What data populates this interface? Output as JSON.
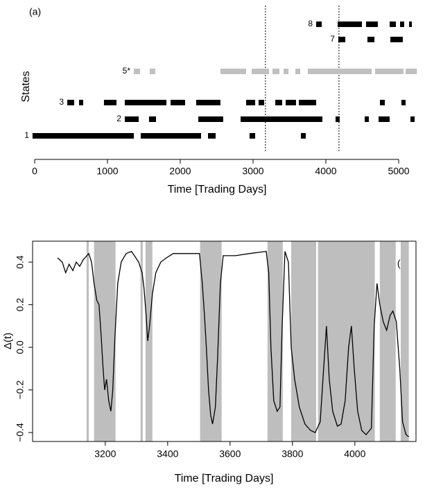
{
  "chart_data": [
    {
      "type": "timeline",
      "panel_label": "(a)",
      "ylabel": "States",
      "xlabel": "Time [Trading Days]",
      "xlim": [
        -114,
        5276
      ],
      "xticks": [
        0,
        1000,
        2000,
        3000,
        4000,
        5000
      ],
      "vlines": [
        3170,
        4180
      ],
      "series": [
        {
          "name": "1",
          "color": "#000000",
          "segments": [
            [
              -29,
              1362
            ],
            [
              1457,
              2286
            ],
            [
              2381,
              2486
            ],
            [
              2952,
              3029
            ],
            [
              3657,
              3724
            ]
          ]
        },
        {
          "name": "2",
          "color": "#000000",
          "segments": [
            [
              1238,
              1429
            ],
            [
              1571,
              1667
            ],
            [
              2248,
              2590
            ],
            [
              2829,
              3952
            ],
            [
              4133,
              4190
            ],
            [
              4533,
              4590
            ],
            [
              4724,
              4876
            ],
            [
              5162,
              5219
            ]
          ]
        },
        {
          "name": "3",
          "color": "#000000",
          "segments": [
            [
              448,
              543
            ],
            [
              610,
              667
            ],
            [
              952,
              1124
            ],
            [
              1238,
              1810
            ],
            [
              1867,
              2067
            ],
            [
              2219,
              2552
            ],
            [
              2905,
              3029
            ],
            [
              3076,
              3152
            ],
            [
              3305,
              3400
            ],
            [
              3448,
              3590
            ],
            [
              3629,
              3867
            ],
            [
              4743,
              4810
            ],
            [
              5038,
              5095
            ]
          ]
        },
        {
          "name": "5*",
          "color": "#c0c0c0",
          "segments": [
            [
              1362,
              1448
            ],
            [
              1581,
              1657
            ],
            [
              2552,
              2905
            ],
            [
              2981,
              3219
            ],
            [
              3267,
              3362
            ],
            [
              3419,
              3486
            ],
            [
              3581,
              3648
            ],
            [
              3752,
              4629
            ],
            [
              4676,
              5067
            ],
            [
              5095,
              5250
            ]
          ]
        },
        {
          "name": "7",
          "color": "#000000",
          "segments": [
            [
              4171,
              4267
            ],
            [
              4571,
              4667
            ],
            [
              4886,
              5057
            ]
          ]
        },
        {
          "name": "8",
          "color": "#000000",
          "segments": [
            [
              3867,
              3943
            ],
            [
              4162,
              4495
            ],
            [
              4552,
              4714
            ],
            [
              4876,
              4962
            ],
            [
              5019,
              5076
            ],
            [
              5143,
              5181
            ]
          ]
        }
      ]
    },
    {
      "type": "line",
      "panel_label": "(b)",
      "ylabel": "Δ(t)",
      "xlabel": "Time [Trading Days]",
      "xlim": [
        2967,
        4196
      ],
      "ylim": [
        -0.442,
        0.498
      ],
      "xticks": [
        3200,
        3400,
        3600,
        3800,
        4000
      ],
      "yticks": [
        {
          "value": -0.4,
          "label": "−0.4"
        },
        {
          "value": -0.2,
          "label": "−0.2"
        },
        {
          "value": 0,
          "label": "0.0"
        },
        0.2,
        0.4
      ],
      "shade_color": "#bebebe",
      "shaded": [
        [
          3140,
          3147
        ],
        [
          3164,
          3233
        ],
        [
          3313,
          3320
        ],
        [
          3329,
          3351
        ],
        [
          3504,
          3573
        ],
        [
          3720,
          3769
        ],
        [
          3796,
          3876
        ],
        [
          3882,
          4064
        ],
        [
          4080,
          4131
        ],
        [
          4147,
          4173
        ]
      ],
      "x": [
        3047,
        3062,
        3073,
        3084,
        3096,
        3107,
        3118,
        3129,
        3147,
        3156,
        3164,
        3173,
        3180,
        3187,
        3193,
        3198,
        3204,
        3211,
        3218,
        3224,
        3231,
        3240,
        3251,
        3267,
        3284,
        3298,
        3307,
        3318,
        3324,
        3331,
        3336,
        3342,
        3351,
        3362,
        3378,
        3396,
        3418,
        3462,
        3502,
        3511,
        3518,
        3524,
        3531,
        3538,
        3544,
        3553,
        3560,
        3569,
        3578,
        3618,
        3662,
        3716,
        3724,
        3731,
        3740,
        3751,
        3760,
        3767,
        3776,
        3787,
        3796,
        3807,
        3822,
        3840,
        3858,
        3873,
        3889,
        3900,
        3909,
        3918,
        3929,
        3944,
        3956,
        3969,
        3980,
        3989,
        3998,
        4009,
        4022,
        4036,
        4053,
        4062,
        4071,
        4080,
        4091,
        4102,
        4113,
        4122,
        4133,
        4144,
        4153,
        4164,
        4173
      ],
      "series": [
        {
          "color": "#000000",
          "values": [
            0.42,
            0.4,
            0.35,
            0.39,
            0.36,
            0.4,
            0.38,
            0.41,
            0.44,
            0.4,
            0.3,
            0.22,
            0.2,
            0.05,
            -0.1,
            -0.2,
            -0.15,
            -0.25,
            -0.3,
            -0.2,
            0.05,
            0.3,
            0.4,
            0.44,
            0.45,
            0.42,
            0.4,
            0.35,
            0.28,
            0.15,
            0.03,
            0.1,
            0.25,
            0.35,
            0.4,
            0.42,
            0.44,
            0.44,
            0.44,
            0.3,
            0.15,
            0.0,
            -0.2,
            -0.32,
            -0.36,
            -0.28,
            -0.05,
            0.3,
            0.43,
            0.43,
            0.44,
            0.45,
            0.35,
            0.0,
            -0.25,
            -0.3,
            -0.28,
            0.1,
            0.45,
            0.4,
            0.0,
            -0.15,
            -0.28,
            -0.36,
            -0.39,
            -0.4,
            -0.35,
            -0.1,
            0.1,
            -0.15,
            -0.3,
            -0.37,
            -0.36,
            -0.25,
            0.0,
            0.1,
            -0.1,
            -0.3,
            -0.39,
            -0.41,
            -0.38,
            0.1,
            0.3,
            0.2,
            0.12,
            0.08,
            0.15,
            0.17,
            0.12,
            -0.1,
            -0.35,
            -0.41,
            -0.42
          ]
        }
      ]
    }
  ]
}
